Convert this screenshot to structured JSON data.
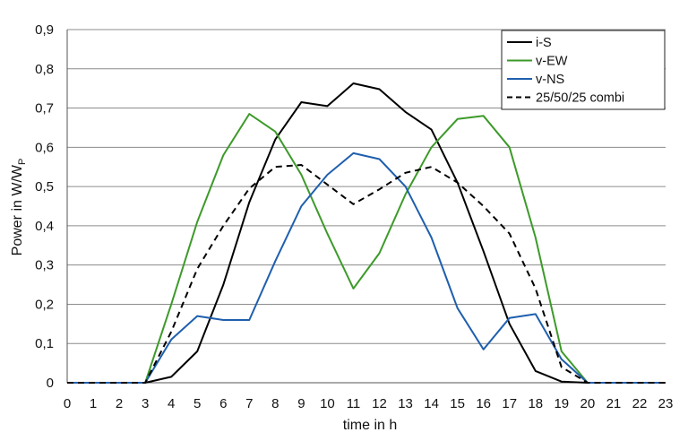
{
  "chart_data": {
    "type": "line",
    "title": "",
    "xlabel": "time in h",
    "ylabel": "Power in W/W",
    "ylabel_sub": "P",
    "x": [
      0,
      1,
      2,
      3,
      4,
      5,
      6,
      7,
      8,
      9,
      10,
      11,
      12,
      13,
      14,
      15,
      16,
      17,
      18,
      19,
      20,
      21,
      22,
      23
    ],
    "xlim": [
      0,
      23
    ],
    "ylim": [
      0,
      0.9
    ],
    "yticks": [
      "0",
      "0,1",
      "0,2",
      "0,3",
      "0,4",
      "0,5",
      "0,6",
      "0,7",
      "0,8",
      "0,9"
    ],
    "yticks_values": [
      0,
      0.1,
      0.2,
      0.3,
      0.4,
      0.5,
      0.6,
      0.7,
      0.8,
      0.9
    ],
    "xticks": [
      "0",
      "1",
      "2",
      "3",
      "4",
      "5",
      "6",
      "7",
      "8",
      "9",
      "10",
      "11",
      "12",
      "13",
      "14",
      "15",
      "16",
      "17",
      "18",
      "19",
      "20",
      "21",
      "22",
      "23"
    ],
    "grid": "horizontal",
    "legend_position": "top-right",
    "series": [
      {
        "name": "i-S",
        "color": "#000000",
        "dash": "solid",
        "values": [
          0,
          0,
          0,
          0,
          0.015,
          0.08,
          0.25,
          0.46,
          0.62,
          0.715,
          0.705,
          0.763,
          0.748,
          0.69,
          0.645,
          0.51,
          0.335,
          0.15,
          0.03,
          0.003,
          0,
          0,
          0,
          0
        ]
      },
      {
        "name": "v-EW",
        "color": "#3d9a2a",
        "dash": "solid",
        "values": [
          0,
          0,
          0,
          0,
          0.2,
          0.41,
          0.58,
          0.685,
          0.64,
          0.53,
          0.38,
          0.24,
          0.33,
          0.48,
          0.6,
          0.672,
          0.68,
          0.6,
          0.37,
          0.08,
          0,
          0,
          0,
          0
        ]
      },
      {
        "name": "v-NS",
        "color": "#1f5fae",
        "dash": "solid",
        "values": [
          0,
          0,
          0,
          0,
          0.11,
          0.17,
          0.16,
          0.16,
          0.31,
          0.45,
          0.53,
          0.585,
          0.57,
          0.5,
          0.37,
          0.19,
          0.085,
          0.165,
          0.175,
          0.06,
          0,
          0,
          0,
          0
        ]
      },
      {
        "name": "25/50/25 combi",
        "color": "#000000",
        "dash": "dashed",
        "values": [
          0,
          0,
          0,
          0,
          0.13,
          0.29,
          0.4,
          0.495,
          0.55,
          0.555,
          0.505,
          0.455,
          0.493,
          0.535,
          0.55,
          0.51,
          0.45,
          0.38,
          0.24,
          0.04,
          0,
          0,
          0,
          0
        ]
      }
    ]
  }
}
